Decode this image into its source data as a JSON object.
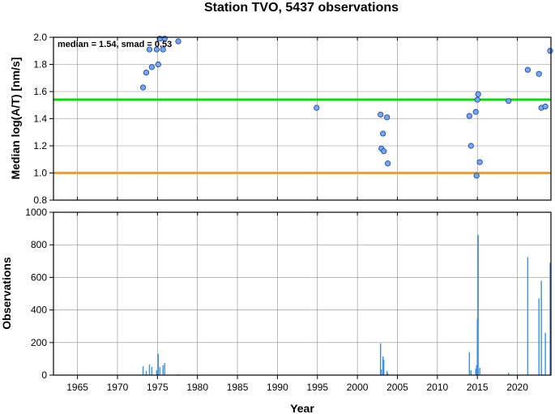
{
  "chart_data": [
    {
      "type": "scatter",
      "title": "Station TVO, 5437 observations",
      "xlabel": "",
      "ylabel": "Median log(A/T) [nm/s]",
      "annotation": "median = 1.54, smad = 0.53",
      "xlim": [
        1962,
        2024.2
      ],
      "ylim": [
        0.8,
        2.0
      ],
      "yticks": [
        "0.8",
        "1.0",
        "1.2",
        "1.4",
        "1.6",
        "1.8",
        "2.0"
      ],
      "grid": true,
      "reference_lines": [
        {
          "value": 1.54,
          "color": "#00e000"
        },
        {
          "value": 1.0,
          "color": "#f0a030"
        }
      ],
      "marker_color": "#6fa8f5",
      "points": [
        {
          "x": 1973.2,
          "y": 1.63
        },
        {
          "x": 1973.6,
          "y": 1.74
        },
        {
          "x": 1974.0,
          "y": 1.91
        },
        {
          "x": 1974.3,
          "y": 1.78
        },
        {
          "x": 1974.9,
          "y": 1.91
        },
        {
          "x": 1975.1,
          "y": 1.8
        },
        {
          "x": 1975.3,
          "y": 1.99
        },
        {
          "x": 1975.7,
          "y": 1.91
        },
        {
          "x": 1975.9,
          "y": 1.99
        },
        {
          "x": 1977.6,
          "y": 1.97
        },
        {
          "x": 1994.9,
          "y": 1.48
        },
        {
          "x": 2002.9,
          "y": 1.43
        },
        {
          "x": 2003.0,
          "y": 1.18
        },
        {
          "x": 2003.2,
          "y": 1.29
        },
        {
          "x": 2003.3,
          "y": 1.16
        },
        {
          "x": 2003.7,
          "y": 1.41
        },
        {
          "x": 2003.8,
          "y": 1.07
        },
        {
          "x": 2014.0,
          "y": 1.42
        },
        {
          "x": 2014.2,
          "y": 1.2
        },
        {
          "x": 2014.8,
          "y": 1.45
        },
        {
          "x": 2014.9,
          "y": 0.98
        },
        {
          "x": 2015.0,
          "y": 1.54
        },
        {
          "x": 2015.1,
          "y": 1.58
        },
        {
          "x": 2015.3,
          "y": 1.08
        },
        {
          "x": 2018.9,
          "y": 1.53
        },
        {
          "x": 2021.3,
          "y": 1.76
        },
        {
          "x": 2022.7,
          "y": 1.73
        },
        {
          "x": 2023.0,
          "y": 1.48
        },
        {
          "x": 2023.5,
          "y": 1.49
        },
        {
          "x": 2024.1,
          "y": 1.9
        }
      ]
    },
    {
      "type": "bar",
      "xlabel": "Year",
      "ylabel": "Observations",
      "xlim": [
        1962,
        2024.2
      ],
      "ylim": [
        0,
        1000
      ],
      "xticks": [
        "1965",
        "1970",
        "1975",
        "1980",
        "1985",
        "1990",
        "1995",
        "2000",
        "2005",
        "2010",
        "2015",
        "2020"
      ],
      "yticks": [
        "0",
        "200",
        "400",
        "600",
        "800",
        "1000"
      ],
      "grid": true,
      "bar_color": "#3d8fe0",
      "bars": [
        {
          "x": 1973.2,
          "value": 55
        },
        {
          "x": 1973.6,
          "value": 25
        },
        {
          "x": 1974.0,
          "value": 65
        },
        {
          "x": 1974.3,
          "value": 50
        },
        {
          "x": 1974.9,
          "value": 30
        },
        {
          "x": 1975.1,
          "value": 130
        },
        {
          "x": 1975.3,
          "value": 50
        },
        {
          "x": 1975.7,
          "value": 60
        },
        {
          "x": 1975.9,
          "value": 75
        },
        {
          "x": 1977.6,
          "value": 5
        },
        {
          "x": 1994.9,
          "value": 3
        },
        {
          "x": 2002.9,
          "value": 195
        },
        {
          "x": 2003.0,
          "value": 35
        },
        {
          "x": 2003.2,
          "value": 115
        },
        {
          "x": 2003.3,
          "value": 95
        },
        {
          "x": 2003.7,
          "value": 25
        },
        {
          "x": 2003.8,
          "value": 10
        },
        {
          "x": 2014.0,
          "value": 140
        },
        {
          "x": 2014.2,
          "value": 30
        },
        {
          "x": 2014.8,
          "value": 40
        },
        {
          "x": 2014.9,
          "value": 60
        },
        {
          "x": 2015.0,
          "value": 345
        },
        {
          "x": 2015.1,
          "value": 860
        },
        {
          "x": 2015.3,
          "value": 45
        },
        {
          "x": 2018.9,
          "value": 15
        },
        {
          "x": 2021.3,
          "value": 725
        },
        {
          "x": 2022.7,
          "value": 470
        },
        {
          "x": 2023.0,
          "value": 580
        },
        {
          "x": 2023.5,
          "value": 260
        },
        {
          "x": 2024.1,
          "value": 690
        }
      ]
    }
  ]
}
